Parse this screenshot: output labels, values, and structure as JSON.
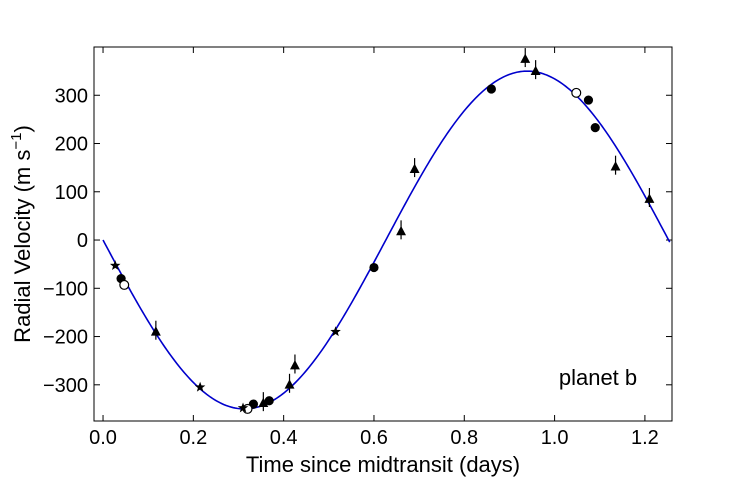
{
  "chart_data": {
    "type": "scatter",
    "title": "",
    "xlabel": "Time since midtransit (days)",
    "ylabel_main": "Radial Velocity (m s",
    "ylabel_exp": "−1",
    "ylabel_close": ")",
    "xlim": [
      -0.02,
      1.26
    ],
    "ylim": [
      -375,
      400
    ],
    "xticks": [
      0.0,
      0.2,
      0.4,
      0.6,
      0.8,
      1.0,
      1.2
    ],
    "xtick_labels": [
      "0.0",
      "0.2",
      "0.4",
      "0.6",
      "0.8",
      "1.0",
      "1.2"
    ],
    "yticks": [
      -300,
      -200,
      -100,
      0,
      100,
      200,
      300
    ],
    "ytick_labels": [
      "−300",
      "−200",
      "−100",
      "0",
      "100",
      "200",
      "300"
    ],
    "annotation": "planet b",
    "model": {
      "name": "orbit fit",
      "color": "#0000cc",
      "amplitude": 350,
      "period": 1.2525,
      "x_range": [
        0.0,
        1.255
      ]
    },
    "series": [
      {
        "name": "filled circles",
        "marker": "circle",
        "color": "#000000",
        "points": [
          [
            0.04,
            -80
          ],
          [
            0.333,
            -340
          ],
          [
            0.368,
            -333
          ],
          [
            0.6,
            -57
          ],
          [
            0.86,
            313
          ],
          [
            1.075,
            290
          ],
          [
            1.09,
            233
          ]
        ]
      },
      {
        "name": "open circles",
        "marker": "circle-open",
        "color": "#000000",
        "points": [
          [
            0.047,
            -93
          ],
          [
            0.32,
            -350
          ],
          [
            1.048,
            305
          ]
        ]
      },
      {
        "name": "triangles",
        "marker": "triangle",
        "color": "#000000",
        "points": [
          [
            0.117,
            -190
          ],
          [
            0.355,
            -338
          ],
          [
            0.413,
            -300
          ],
          [
            0.425,
            -260
          ],
          [
            0.66,
            18
          ],
          [
            0.69,
            147
          ],
          [
            0.935,
            375
          ],
          [
            0.958,
            350
          ],
          [
            1.135,
            152
          ],
          [
            1.21,
            85
          ]
        ]
      },
      {
        "name": "stars",
        "marker": "star",
        "color": "#000000",
        "points": [
          [
            0.027,
            -53
          ],
          [
            0.215,
            -305
          ],
          [
            0.31,
            -348
          ],
          [
            0.515,
            -190
          ]
        ]
      }
    ]
  }
}
